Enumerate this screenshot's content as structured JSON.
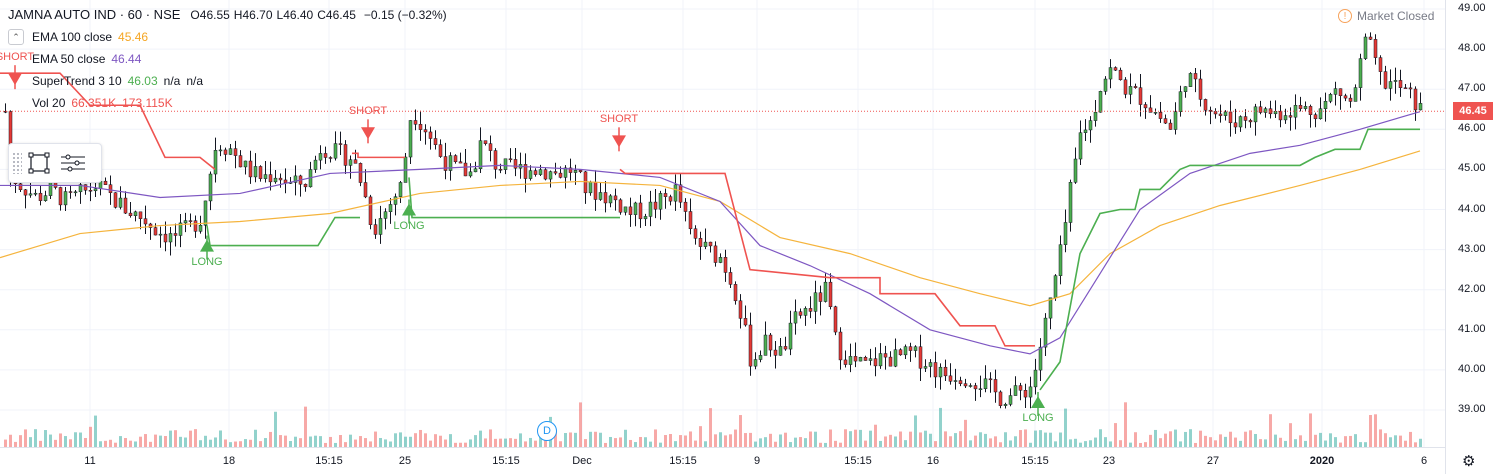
{
  "header": {
    "symbol": "JAMNA AUTO IND · 60 · NSE",
    "open_label": "O",
    "open": "46.55",
    "high_label": "H",
    "high": "46.70",
    "low_label": "L",
    "low": "46.40",
    "close_label": "C",
    "close": "46.45",
    "change": "−0.15 (−0.32%)"
  },
  "indicators": {
    "collapse_glyph": "⌃",
    "ema100": {
      "name": "EMA 100 close",
      "value": "45.46",
      "color": "#f5b43d"
    },
    "ema50": {
      "name": "EMA 50 close",
      "value": "46.44",
      "color": "#7e57c2"
    },
    "supertrend": {
      "name": "SuperTrend 3 10",
      "value": "46.03",
      "extra1": "n/a",
      "extra2": "n/a",
      "color": "#4caf50"
    },
    "volume": {
      "name": "Vol 20",
      "value1": "66.351K",
      "value2": "173.115K",
      "color1": "#ef5350",
      "color2": "#f5b43d"
    }
  },
  "status": {
    "icon": "!",
    "text": "Market Closed"
  },
  "last_price": "46.45",
  "dividend_badge": "D",
  "chart_data": {
    "type": "candlestick",
    "title": "JAMNA AUTO IND · 60 · NSE",
    "ylim": [
      38.5,
      49.0
    ],
    "y_ticks": [
      "49.00",
      "48.00",
      "47.00",
      "46.00",
      "45.00",
      "44.00",
      "43.00",
      "42.00",
      "41.00",
      "40.00",
      "39.00"
    ],
    "x_ticks": [
      {
        "label": "11",
        "x": 90
      },
      {
        "label": "18",
        "x": 229
      },
      {
        "label": "15:15",
        "x": 329
      },
      {
        "label": "25",
        "x": 405
      },
      {
        "label": "15:15",
        "x": 506
      },
      {
        "label": "Dec",
        "x": 582
      },
      {
        "label": "15:15",
        "x": 683
      },
      {
        "label": "9",
        "x": 757
      },
      {
        "label": "15:15",
        "x": 858
      },
      {
        "label": "16",
        "x": 933
      },
      {
        "label": "15:15",
        "x": 1035
      },
      {
        "label": "23",
        "x": 1109
      },
      {
        "label": "27",
        "x": 1213
      },
      {
        "label": "2020",
        "x": 1322,
        "bold": true
      },
      {
        "label": "6",
        "x": 1424
      }
    ],
    "series": [
      {
        "name": "Price",
        "path_close": [
          [
            8,
            44.9
          ],
          [
            20,
            44.6
          ],
          [
            35,
            44.3
          ],
          [
            50,
            44.5
          ],
          [
            65,
            44.2
          ],
          [
            80,
            44.4
          ],
          [
            95,
            44.6
          ],
          [
            110,
            44.3
          ],
          [
            125,
            44.0
          ],
          [
            140,
            43.8
          ],
          [
            155,
            43.5
          ],
          [
            170,
            43.3
          ],
          [
            185,
            43.5
          ],
          [
            200,
            43.8
          ],
          [
            215,
            45.7
          ],
          [
            230,
            45.5
          ],
          [
            245,
            45.0
          ],
          [
            260,
            44.8
          ],
          [
            275,
            44.9
          ],
          [
            290,
            44.6
          ],
          [
            305,
            44.7
          ],
          [
            320,
            45.6
          ],
          [
            335,
            45.4
          ],
          [
            350,
            45.3
          ],
          [
            360,
            44.7
          ],
          [
            372,
            43.5
          ],
          [
            385,
            44.0
          ],
          [
            400,
            44.6
          ],
          [
            410,
            46.5
          ],
          [
            425,
            46.0
          ],
          [
            440,
            45.3
          ],
          [
            455,
            45.0
          ],
          [
            470,
            44.9
          ],
          [
            480,
            45.7
          ],
          [
            495,
            45.1
          ],
          [
            510,
            45.0
          ],
          [
            525,
            45.0
          ],
          [
            540,
            45.0
          ],
          [
            555,
            44.9
          ],
          [
            570,
            45.0
          ],
          [
            585,
            44.5
          ],
          [
            600,
            44.4
          ],
          [
            615,
            44.2
          ],
          [
            630,
            43.9
          ],
          [
            645,
            44.0
          ],
          [
            660,
            44.2
          ],
          [
            675,
            44.5
          ],
          [
            690,
            43.3
          ],
          [
            705,
            43.0
          ],
          [
            720,
            42.8
          ],
          [
            735,
            41.9
          ],
          [
            750,
            40.2
          ],
          [
            765,
            40.7
          ],
          [
            780,
            40.4
          ],
          [
            795,
            41.3
          ],
          [
            810,
            41.6
          ],
          [
            825,
            42.0
          ],
          [
            835,
            40.6
          ],
          [
            850,
            40.2
          ],
          [
            865,
            40.1
          ],
          [
            880,
            40.3
          ],
          [
            895,
            40.3
          ],
          [
            910,
            40.4
          ],
          [
            925,
            40.2
          ],
          [
            940,
            39.9
          ],
          [
            955,
            39.9
          ],
          [
            970,
            39.8
          ],
          [
            985,
            39.6
          ],
          [
            1000,
            39.3
          ],
          [
            1015,
            39.4
          ],
          [
            1030,
            39.6
          ],
          [
            1040,
            40.7
          ],
          [
            1050,
            41.8
          ],
          [
            1060,
            43.0
          ],
          [
            1070,
            44.6
          ],
          [
            1080,
            46.0
          ],
          [
            1090,
            46.2
          ],
          [
            1100,
            47.2
          ],
          [
            1110,
            47.5
          ],
          [
            1125,
            47.0
          ],
          [
            1140,
            46.8
          ],
          [
            1155,
            46.4
          ],
          [
            1170,
            46.0
          ],
          [
            1185,
            47.4
          ],
          [
            1200,
            46.8
          ],
          [
            1215,
            46.4
          ],
          [
            1230,
            46.2
          ],
          [
            1245,
            46.3
          ],
          [
            1260,
            46.5
          ],
          [
            1275,
            46.4
          ],
          [
            1290,
            46.5
          ],
          [
            1305,
            46.5
          ],
          [
            1320,
            46.5
          ],
          [
            1335,
            47.0
          ],
          [
            1350,
            46.6
          ],
          [
            1365,
            48.3
          ],
          [
            1380,
            47.2
          ],
          [
            1395,
            47.1
          ],
          [
            1410,
            46.8
          ],
          [
            1420,
            46.45
          ]
        ]
      },
      {
        "name": "EMA 100 close",
        "color": "#f5b43d",
        "points": [
          [
            0,
            42.8
          ],
          [
            80,
            43.4
          ],
          [
            160,
            43.6
          ],
          [
            240,
            43.7
          ],
          [
            330,
            43.9
          ],
          [
            420,
            44.4
          ],
          [
            500,
            44.6
          ],
          [
            580,
            44.7
          ],
          [
            660,
            44.6
          ],
          [
            720,
            44.2
          ],
          [
            780,
            43.3
          ],
          [
            850,
            42.9
          ],
          [
            920,
            42.3
          ],
          [
            980,
            41.9
          ],
          [
            1030,
            41.6
          ],
          [
            1070,
            41.9
          ],
          [
            1110,
            42.9
          ],
          [
            1160,
            43.6
          ],
          [
            1220,
            44.1
          ],
          [
            1300,
            44.6
          ],
          [
            1360,
            45.0
          ],
          [
            1420,
            45.46
          ]
        ]
      },
      {
        "name": "EMA 50 close",
        "color": "#7e57c2",
        "points": [
          [
            0,
            44.6
          ],
          [
            80,
            44.6
          ],
          [
            160,
            44.3
          ],
          [
            240,
            44.4
          ],
          [
            330,
            44.9
          ],
          [
            420,
            45.0
          ],
          [
            500,
            45.1
          ],
          [
            580,
            45.0
          ],
          [
            660,
            44.8
          ],
          [
            720,
            44.2
          ],
          [
            760,
            43.1
          ],
          [
            810,
            42.6
          ],
          [
            870,
            41.9
          ],
          [
            930,
            41.0
          ],
          [
            990,
            40.6
          ],
          [
            1030,
            40.4
          ],
          [
            1060,
            40.8
          ],
          [
            1100,
            42.4
          ],
          [
            1140,
            44.0
          ],
          [
            1190,
            44.9
          ],
          [
            1250,
            45.4
          ],
          [
            1300,
            45.6
          ],
          [
            1360,
            46.0
          ],
          [
            1420,
            46.44
          ]
        ]
      }
    ],
    "signals": [
      {
        "type": "SHORT",
        "x": 15,
        "y": 47.25
      },
      {
        "type": "LONG",
        "x": 207,
        "y": 43.1
      },
      {
        "type": "SHORT",
        "x": 368,
        "y": 45.9
      },
      {
        "type": "LONG",
        "x": 409,
        "y": 44.0
      },
      {
        "type": "SHORT",
        "x": 619,
        "y": 45.7
      },
      {
        "type": "LONG",
        "x": 1038,
        "y": 39.2
      }
    ]
  }
}
